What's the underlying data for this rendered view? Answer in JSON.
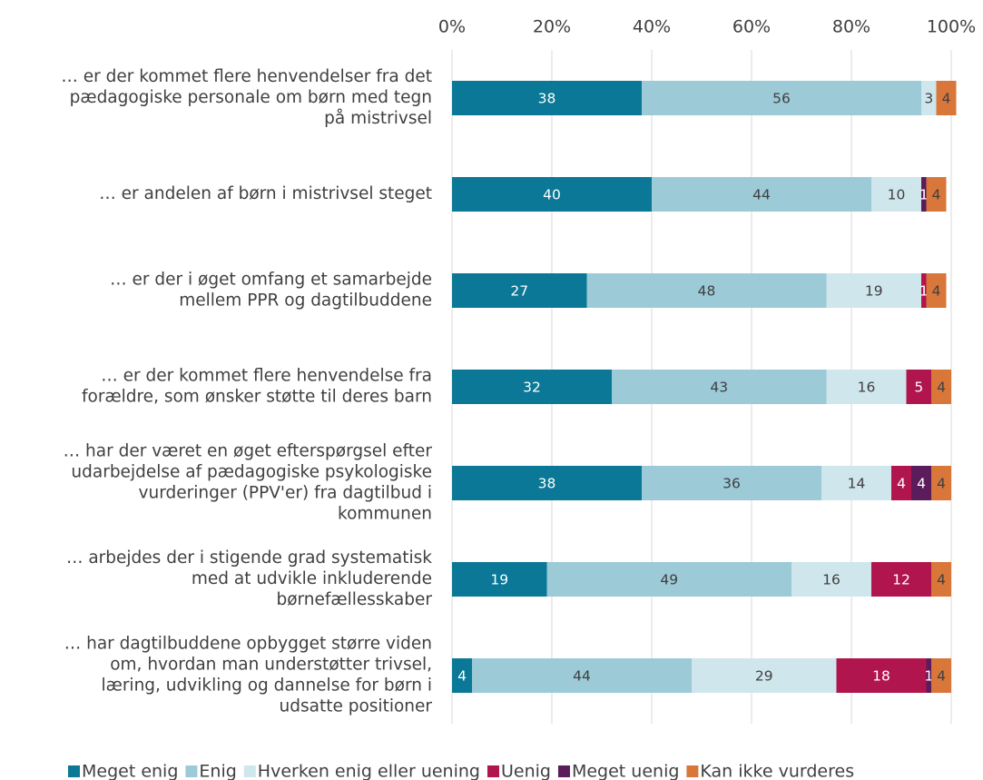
{
  "chart_data": {
    "type": "stacked_bar_horizontal",
    "categories": [
      "… er der kommet flere henvendelser fra det\npædagogiske personale om børn med tegn\npå mistrivsel",
      "… er andelen af børn i mistrivsel steget",
      "… er der i øget omfang et samarbejde\nmellem PPR og dagtilbuddene",
      "… er der kommet flere henvendelse fra\nforældre, som ønsker støtte til deres barn",
      "… har der været en øget efterspørgsel efter\nudarbejdelse af pædagogiske psykologiske\nvurderinger (PPV'er) fra dagtilbud i\nkommunen",
      "… arbejdes der i stigende grad systematisk\nmed at udvikle inkluderende\nbørnefællesskaber",
      "… har dagtilbuddene opbygget større viden\nom, hvordan man understøtter trivsel,\nlæring, udvikling og dannelse for børn i\nudsatte positioner"
    ],
    "series": [
      {
        "name": "Meget enig",
        "color": "#0a7896",
        "values": [
          38,
          40,
          27,
          32,
          38,
          19,
          4
        ]
      },
      {
        "name": "Enig",
        "color": "#9ccad7",
        "values": [
          56,
          44,
          48,
          43,
          36,
          49,
          44
        ]
      },
      {
        "name": "Hverken enig eller uening",
        "color": "#cfe6ec",
        "values": [
          3,
          10,
          19,
          16,
          14,
          16,
          29
        ]
      },
      {
        "name": "Uenig",
        "color": "#b0164d",
        "values": [
          null,
          null,
          1,
          5,
          4,
          12,
          18
        ]
      },
      {
        "name": "Meget uenig",
        "color": "#5a1c5a",
        "values": [
          null,
          1,
          null,
          null,
          4,
          null,
          1
        ]
      },
      {
        "name": "Kan ikke vurderes",
        "color": "#d9763a",
        "values": [
          4,
          4,
          4,
          4,
          4,
          4,
          4
        ]
      }
    ],
    "xlim": [
      0,
      100
    ],
    "xticks": [
      {
        "value": 0,
        "label": "0%"
      },
      {
        "value": 20,
        "label": "20%"
      },
      {
        "value": 40,
        "label": "40%"
      },
      {
        "value": 60,
        "label": "60%"
      },
      {
        "value": 80,
        "label": "80%"
      },
      {
        "value": 100,
        "label": "100%"
      }
    ],
    "grid": true,
    "legend": "bottom"
  }
}
